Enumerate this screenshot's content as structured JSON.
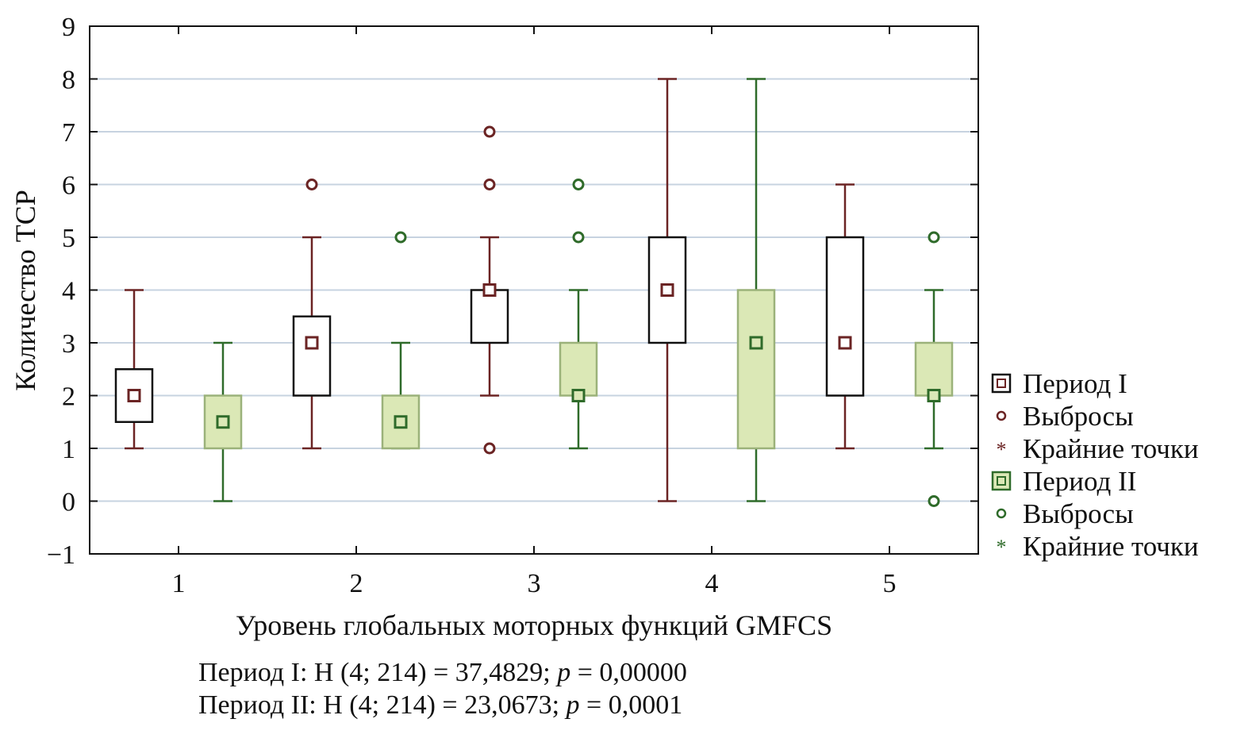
{
  "chart_data": {
    "type": "box",
    "xlabel": "Уровень глобальных моторных функций GMFCS",
    "ylabel": "Количество ТСР",
    "ylim": [
      -1,
      9
    ],
    "yticks": [
      "9",
      "8",
      "7",
      "6",
      "5",
      "4",
      "3",
      "2",
      "1",
      "0",
      "−1"
    ],
    "categories": [
      "1",
      "2",
      "3",
      "4",
      "5"
    ],
    "grid": true,
    "legend_position": "right",
    "colors": {
      "period1": "#6b2424",
      "period2": "#2f6b2a",
      "period2_fill": "#dbe8b6"
    },
    "legend": [
      {
        "label": "Период I",
        "symbol": "box",
        "series": "period1"
      },
      {
        "label": "Выбросы",
        "symbol": "circle",
        "series": "period1"
      },
      {
        "label": "Крайние точки",
        "symbol": "star",
        "series": "period1"
      },
      {
        "label": "Период II",
        "symbol": "box",
        "series": "period2"
      },
      {
        "label": "Выбросы",
        "symbol": "circle",
        "series": "period2"
      },
      {
        "label": "Крайние точки",
        "symbol": "star",
        "series": "period2"
      }
    ],
    "series": [
      {
        "name": "Период I",
        "boxes": [
          {
            "category": "1",
            "whisker_low": 1,
            "q1": 1.5,
            "median": 2,
            "q3": 2.5,
            "whisker_high": 4,
            "outliers": []
          },
          {
            "category": "2",
            "whisker_low": 1,
            "q1": 2,
            "median": 3,
            "q3": 3.5,
            "whisker_high": 5,
            "outliers": [
              6
            ]
          },
          {
            "category": "3",
            "whisker_low": 2,
            "q1": 3,
            "median": 4,
            "q3": 4,
            "whisker_high": 5,
            "outliers": [
              1,
              6,
              7
            ]
          },
          {
            "category": "4",
            "whisker_low": 0,
            "q1": 3,
            "median": 4,
            "q3": 5,
            "whisker_high": 8,
            "outliers": []
          },
          {
            "category": "5",
            "whisker_low": 1,
            "q1": 2,
            "median": 3,
            "q3": 5,
            "whisker_high": 6,
            "outliers": []
          }
        ]
      },
      {
        "name": "Период II",
        "boxes": [
          {
            "category": "1",
            "whisker_low": 0,
            "q1": 1,
            "median": 1.5,
            "q3": 2,
            "whisker_high": 3,
            "outliers": []
          },
          {
            "category": "2",
            "whisker_low": 1,
            "q1": 1,
            "median": 1.5,
            "q3": 2,
            "whisker_high": 3,
            "outliers": [
              5
            ]
          },
          {
            "category": "3",
            "whisker_low": 1,
            "q1": 2,
            "median": 2,
            "q3": 3,
            "whisker_high": 4,
            "outliers": [
              5,
              6
            ]
          },
          {
            "category": "4",
            "whisker_low": 0,
            "q1": 1,
            "median": 3,
            "q3": 4,
            "whisker_high": 8,
            "outliers": []
          },
          {
            "category": "5",
            "whisker_low": 1,
            "q1": 2,
            "median": 2,
            "q3": 3,
            "whisker_high": 4,
            "outliers": [
              0,
              5
            ]
          }
        ]
      }
    ],
    "annotations": {
      "line1_prefix": "Период I: H (4; 214) = 37,4829; ",
      "line1_p": "p",
      "line1_suffix": " = 0,00000",
      "line2_prefix": "Период II: H (4; 214) = 23,0673; ",
      "line2_p": "p",
      "line2_suffix": " = 0,0001"
    }
  }
}
